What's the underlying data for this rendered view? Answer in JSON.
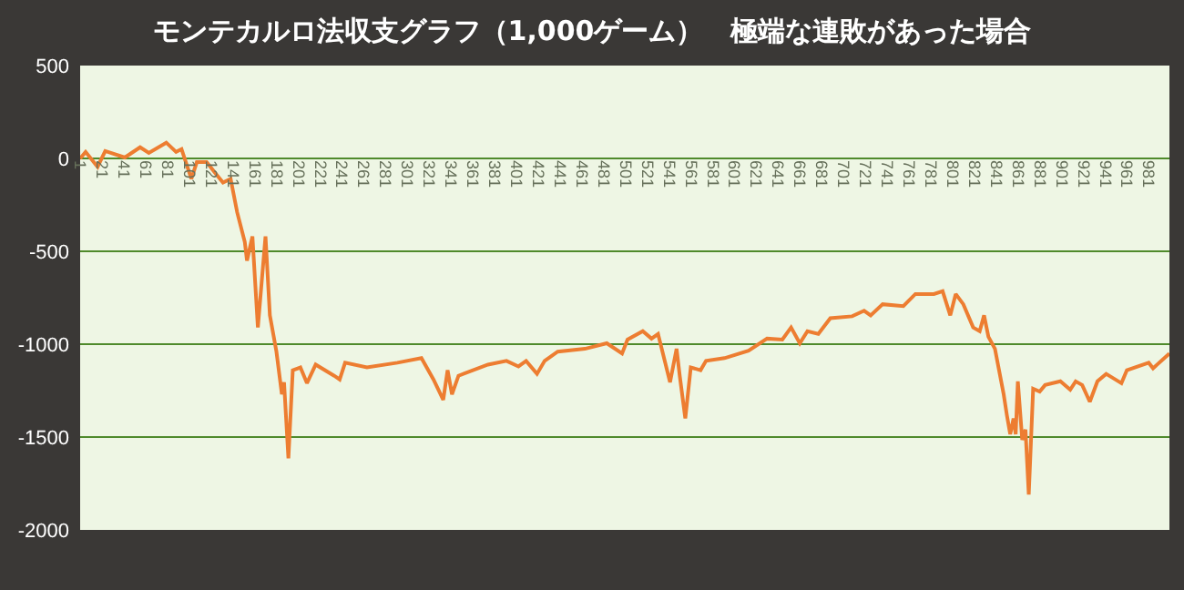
{
  "chart_data": {
    "type": "line",
    "title": "モンテカルロ法収支グラフ（1,000ゲーム）　極端な連敗があった場合",
    "x": [
      1,
      6,
      17,
      24,
      42,
      56,
      64,
      80,
      89,
      94,
      103,
      108,
      117,
      125,
      132,
      139,
      145,
      152,
      154,
      159,
      164,
      171,
      175,
      181,
      186,
      188,
      192,
      196,
      203,
      209,
      217,
      234,
      239,
      244,
      264,
      292,
      314,
      325,
      334,
      338,
      342,
      348,
      375,
      392,
      403,
      410,
      420,
      427,
      439,
      464,
      484,
      498,
      503,
      517,
      525,
      531,
      542,
      548,
      551,
      556,
      561,
      570,
      575,
      592,
      614,
      631,
      645,
      653,
      661,
      668,
      678,
      689,
      709,
      720,
      726,
      737,
      756,
      767,
      784,
      792,
      799,
      804,
      811,
      820,
      826,
      830,
      834,
      840,
      848,
      851,
      854,
      857,
      859,
      861,
      865,
      868,
      871,
      875,
      881,
      886,
      900,
      909,
      914,
      920,
      927,
      934,
      942,
      956,
      961,
      981,
      985,
      1000
    ],
    "series": [
      {
        "color": "#ed7d31",
        "values": [
          0,
          35,
          -45,
          40,
          5,
          60,
          30,
          85,
          35,
          50,
          -110,
          -20,
          -20,
          -80,
          -130,
          -110,
          -290,
          -450,
          -550,
          -420,
          -910,
          -420,
          -845,
          -1040,
          -1270,
          -1205,
          -1615,
          -1140,
          -1125,
          -1210,
          -1110,
          -1170,
          -1190,
          -1100,
          -1125,
          -1100,
          -1075,
          -1190,
          -1300,
          -1140,
          -1270,
          -1170,
          -1110,
          -1090,
          -1120,
          -1090,
          -1160,
          -1090,
          -1040,
          -1025,
          -995,
          -1050,
          -975,
          -930,
          -970,
          -945,
          -1205,
          -1025,
          -1175,
          -1400,
          -1125,
          -1140,
          -1090,
          -1075,
          -1035,
          -970,
          -975,
          -910,
          -995,
          -930,
          -945,
          -860,
          -850,
          -820,
          -845,
          -785,
          -795,
          -730,
          -730,
          -715,
          -845,
          -730,
          -785,
          -910,
          -930,
          -845,
          -960,
          -1025,
          -1270,
          -1385,
          -1485,
          -1400,
          -1485,
          -1200,
          -1515,
          -1460,
          -1810,
          -1240,
          -1255,
          -1220,
          -1200,
          -1245,
          -1200,
          -1220,
          -1310,
          -1200,
          -1160,
          -1210,
          -1140,
          -1100,
          -1130,
          -1050
        ]
      }
    ],
    "xlim": [
      1,
      1000
    ],
    "xticks": [
      1,
      21,
      41,
      61,
      81,
      101,
      121,
      141,
      161,
      181,
      201,
      221,
      241,
      261,
      281,
      301,
      321,
      341,
      361,
      381,
      401,
      421,
      441,
      461,
      481,
      501,
      521,
      541,
      561,
      581,
      601,
      621,
      641,
      661,
      681,
      701,
      721,
      741,
      761,
      781,
      801,
      821,
      841,
      861,
      881,
      901,
      921,
      941,
      961,
      981
    ],
    "ylim": [
      -2000,
      500
    ],
    "yticks": [
      -2000,
      -1500,
      -1000,
      -500,
      0,
      500
    ],
    "grid": "y",
    "marker": "none",
    "line_style": "solid"
  }
}
